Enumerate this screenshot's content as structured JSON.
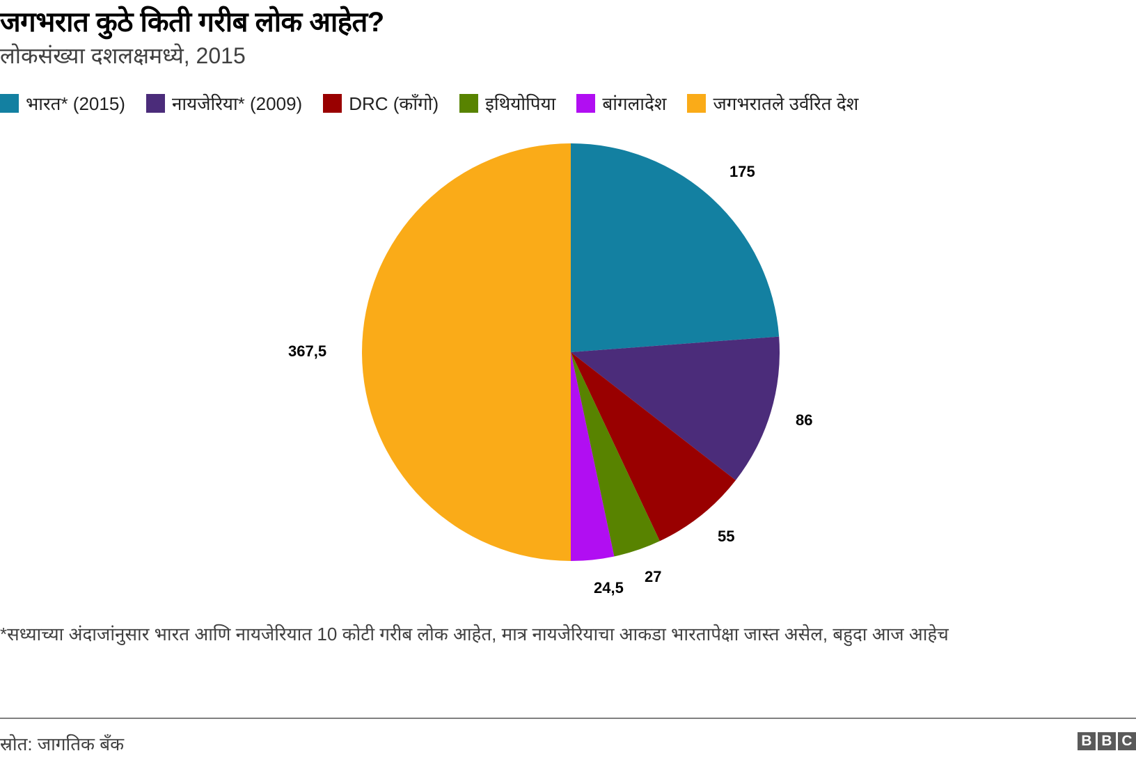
{
  "header": {
    "title": "जगभरात कुठे किती गरीब लोक आहेत?",
    "subtitle": "लोकसंख्या दशलक्षमध्ये, 2015"
  },
  "legend": [
    {
      "label": "भारत* (2015)",
      "color": "#1380A1"
    },
    {
      "label": "नायजेरिया* (2009)",
      "color": "#4B2C7A"
    },
    {
      "label": "DRC (कॉंगो)",
      "color": "#990000"
    },
    {
      "label": "इथियोपिया",
      "color": "#588300"
    },
    {
      "label": "बांगलादेश",
      "color": "#B10EF2"
    },
    {
      "label": "जगभरातले उर्वरित देश",
      "color": "#FAAB18"
    }
  ],
  "chart_data": {
    "type": "pie",
    "title": "जगभरात कुठे किती गरीब लोक आहेत?",
    "subtitle": "लोकसंख्या दशलक्षमध्ये, 2015",
    "categories": [
      "भारत* (2015)",
      "नायजेरिया* (2009)",
      "DRC (कॉंगो)",
      "इथियोपिया",
      "बांगलादेश",
      "जगभरातले उर्वरित देश"
    ],
    "values": [
      175,
      86,
      55,
      27,
      24.5,
      367.5
    ],
    "value_labels": [
      "175",
      "86",
      "55",
      "27",
      "24,5",
      "367,5"
    ],
    "colors": [
      "#1380A1",
      "#4B2C7A",
      "#990000",
      "#588300",
      "#B10EF2",
      "#FAAB18"
    ],
    "start_angle": "12 o'clock, clockwise",
    "legend_position": "top",
    "units": "millions of people"
  },
  "footer": {
    "note": "*सध्याच्या अंदाजांनुसार भारत आणि नायजेरियात 10 कोटी गरीब लोक आहेत, मात्र नायजेरियाचा आकडा भारतापेक्षा जास्त असेल, बहुदा आज आहेच",
    "source": "स्रोत: जागतिक बँक",
    "logo": [
      "B",
      "B",
      "C"
    ]
  }
}
